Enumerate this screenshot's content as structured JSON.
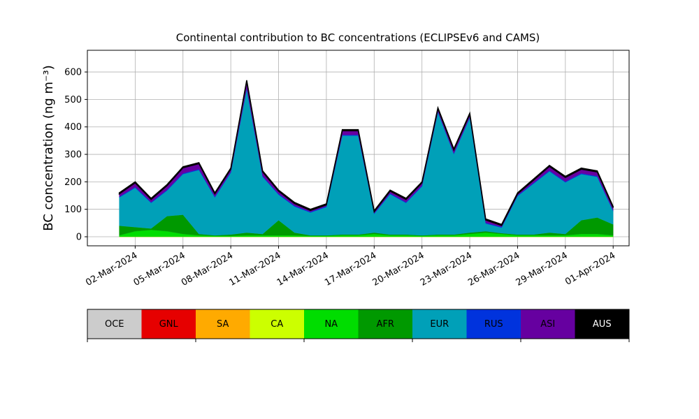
{
  "chart_data": {
    "type": "stacked_area",
    "title": "Continental contribution to BC concentrations (ECLIPSEv6 and CAMS)",
    "y_label": "BC concentration (ng m⁻³)",
    "x": [
      "2024-03-01",
      "2024-03-02",
      "2024-03-03",
      "2024-03-04",
      "2024-03-05",
      "2024-03-06",
      "2024-03-07",
      "2024-03-08",
      "2024-03-09",
      "2024-03-10",
      "2024-03-11",
      "2024-03-12",
      "2024-03-13",
      "2024-03-14",
      "2024-03-15",
      "2024-03-16",
      "2024-03-17",
      "2024-03-18",
      "2024-03-19",
      "2024-03-20",
      "2024-03-21",
      "2024-03-22",
      "2024-03-23",
      "2024-03-24",
      "2024-03-25",
      "2024-03-26",
      "2024-03-27",
      "2024-03-28",
      "2024-03-29",
      "2024-03-30",
      "2024-03-31",
      "2024-04-01"
    ],
    "series": [
      {
        "name": "OCE",
        "color": "#cccccc",
        "values": [
          0,
          0,
          0,
          0,
          0,
          0,
          0,
          0,
          0,
          0,
          0,
          0,
          0,
          0,
          0,
          0,
          0,
          0,
          0,
          0,
          0,
          0,
          0,
          0,
          0,
          0,
          0,
          0,
          0,
          0,
          0,
          0
        ]
      },
      {
        "name": "GNL",
        "color": "#e60000",
        "values": [
          0,
          0,
          0,
          0,
          0,
          0,
          0,
          0,
          0,
          0,
          0,
          0,
          0,
          0,
          0,
          0,
          0,
          0,
          0,
          0,
          0,
          0,
          0,
          0,
          0,
          0,
          0,
          0,
          0,
          0,
          0,
          0
        ]
      },
      {
        "name": "SA",
        "color": "#ffaa00",
        "values": [
          0,
          0,
          0,
          0,
          0,
          0,
          0,
          0,
          0,
          0,
          0,
          0,
          0,
          0,
          0,
          0,
          0,
          0,
          0,
          0,
          0,
          0,
          0,
          0,
          0,
          0,
          0,
          0,
          0,
          0,
          0,
          0
        ]
      },
      {
        "name": "CA",
        "color": "#ccff00",
        "values": [
          0,
          0,
          0,
          0,
          0,
          0,
          0,
          0,
          0,
          0,
          0,
          0,
          0,
          0,
          0,
          0,
          0,
          0,
          0,
          0,
          0,
          0,
          0,
          0,
          0,
          0,
          0,
          0,
          0,
          0,
          0,
          0
        ]
      },
      {
        "name": "NA",
        "color": "#00dd00",
        "values": [
          5,
          20,
          25,
          20,
          10,
          5,
          3,
          3,
          5,
          5,
          5,
          5,
          3,
          3,
          5,
          5,
          10,
          5,
          5,
          3,
          5,
          5,
          10,
          15,
          10,
          5,
          5,
          5,
          5,
          10,
          10,
          5
        ]
      },
      {
        "name": "AFR",
        "color": "#009900",
        "values": [
          35,
          15,
          5,
          55,
          70,
          5,
          2,
          5,
          10,
          5,
          55,
          10,
          2,
          2,
          3,
          3,
          5,
          3,
          3,
          2,
          3,
          3,
          5,
          5,
          3,
          3,
          3,
          10,
          5,
          50,
          60,
          40
        ]
      },
      {
        "name": "EUR",
        "color": "#00a0b8",
        "values": [
          103,
          143,
          93,
          93,
          148,
          233,
          138,
          225,
          523,
          208,
          93,
          95,
          83,
          103,
          360,
          360,
          68,
          147,
          115,
          178,
          445,
          293,
          418,
          28,
          20,
          140,
          185,
          223,
          188,
          168,
          148,
          48
        ]
      },
      {
        "name": "RUS",
        "color": "#0033dd",
        "values": [
          3,
          3,
          3,
          3,
          3,
          3,
          3,
          3,
          3,
          3,
          3,
          3,
          3,
          3,
          3,
          3,
          3,
          3,
          3,
          3,
          3,
          3,
          3,
          3,
          3,
          3,
          3,
          3,
          3,
          3,
          3,
          3
        ]
      },
      {
        "name": "ASI",
        "color": "#6600a0",
        "values": [
          10,
          15,
          10,
          15,
          20,
          20,
          10,
          10,
          25,
          15,
          10,
          8,
          5,
          5,
          15,
          15,
          5,
          8,
          10,
          10,
          10,
          12,
          10,
          10,
          5,
          5,
          10,
          15,
          15,
          15,
          15,
          10
        ]
      },
      {
        "name": "AUS",
        "color": "#000000",
        "values": [
          4,
          4,
          4,
          4,
          4,
          4,
          4,
          4,
          4,
          4,
          4,
          4,
          4,
          4,
          4,
          4,
          4,
          4,
          4,
          4,
          4,
          4,
          4,
          4,
          4,
          4,
          4,
          4,
          4,
          4,
          4,
          4
        ]
      }
    ],
    "xlim": [
      "2024-02-28",
      "2024-04-02"
    ],
    "xticks": [
      {
        "value": "2024-03-02",
        "label": "02-Mar-2024"
      },
      {
        "value": "2024-03-05",
        "label": "05-Mar-2024"
      },
      {
        "value": "2024-03-08",
        "label": "08-Mar-2024"
      },
      {
        "value": "2024-03-11",
        "label": "11-Mar-2024"
      },
      {
        "value": "2024-03-14",
        "label": "14-Mar-2024"
      },
      {
        "value": "2024-03-17",
        "label": "17-Mar-2024"
      },
      {
        "value": "2024-03-20",
        "label": "20-Mar-2024"
      },
      {
        "value": "2024-03-23",
        "label": "23-Mar-2024"
      },
      {
        "value": "2024-03-26",
        "label": "26-Mar-2024"
      },
      {
        "value": "2024-03-29",
        "label": "29-Mar-2024"
      },
      {
        "value": "2024-04-01",
        "label": "01-Apr-2024"
      }
    ],
    "ylim": [
      -33,
      679
    ],
    "yticks": [
      0,
      100,
      200,
      300,
      400,
      500,
      600
    ],
    "grid": true
  }
}
